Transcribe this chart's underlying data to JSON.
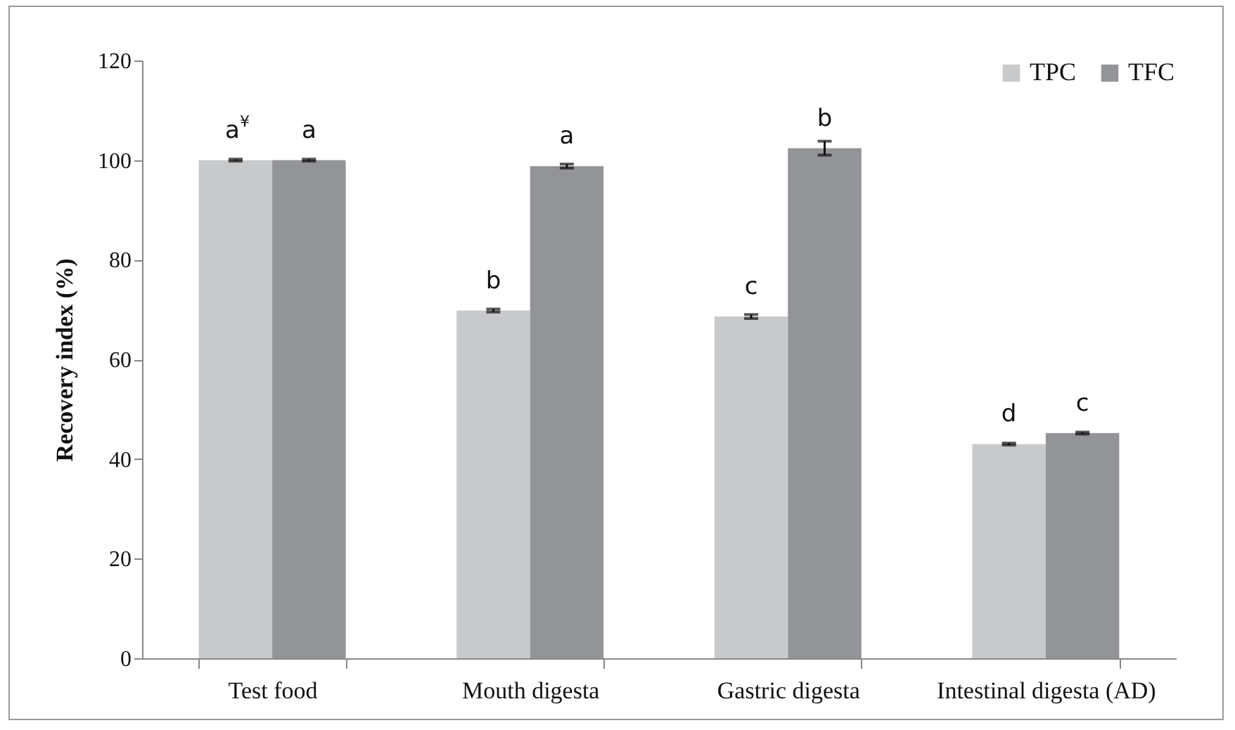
{
  "chart_data": {
    "type": "bar",
    "ylabel": "Recovery index (%)",
    "categories": [
      "Test food",
      "Mouth digesta",
      "Gastric digesta",
      "Intestinal digesta (AD)"
    ],
    "series": [
      {
        "name": "TPC",
        "color": "#c8c9cb",
        "values": [
          100,
          69.8,
          68.6,
          43.0
        ],
        "errors": [
          0.2,
          0.3,
          0.4,
          0.2
        ]
      },
      {
        "name": "TFC",
        "color": "#939497",
        "values": [
          100,
          98.8,
          102.4,
          45.2
        ],
        "errors": [
          0.2,
          0.4,
          1.4,
          0.2
        ]
      }
    ],
    "annotations": [
      {
        "text": "a$^{¥}$",
        "x": "Test food",
        "y": 100
      },
      {
        "text": "b",
        "x": "Mouth digesta",
        "y": 69.8
      },
      {
        "text": "c",
        "x": "Gastric digesta",
        "y": 68.6
      },
      {
        "text": "d",
        "x": "Intestinal digesta (AD)",
        "y": 43.0
      },
      {
        "text": "a",
        "x": "Test food",
        "y": 100
      },
      {
        "text": "a",
        "x": "Mouth digesta",
        "y": 98.8
      },
      {
        "text": "b",
        "x": "Gastric digesta",
        "y": 102.4
      },
      {
        "text": "c",
        "x": "Intestinal digesta (AD)",
        "y": 45.2
      }
    ],
    "ylim": [
      0,
      120
    ],
    "yticks": [
      0,
      20,
      40,
      60,
      80,
      100,
      120
    ],
    "grid": false,
    "legend": "top right"
  }
}
